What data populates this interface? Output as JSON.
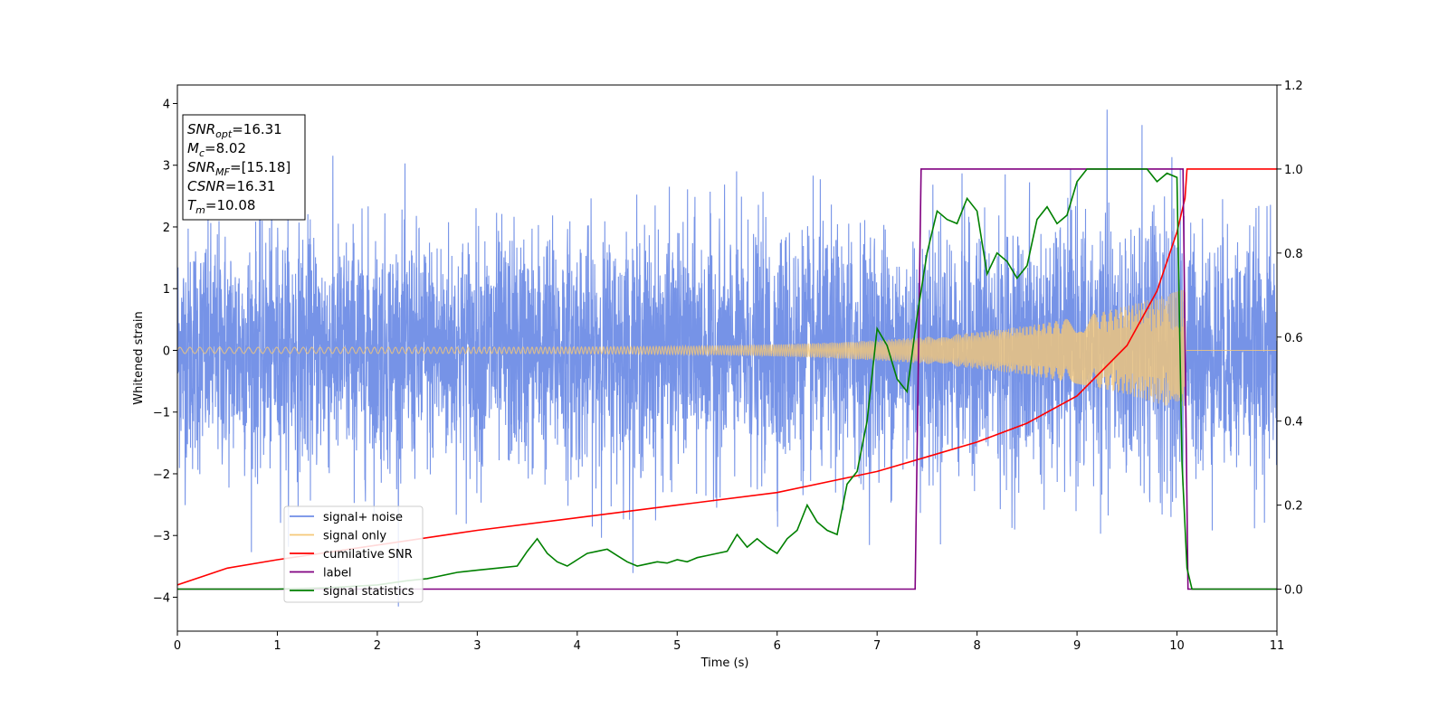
{
  "chart_data": {
    "type": "line",
    "xlabel": "Time (s)",
    "ylabel": "Whitened strain",
    "xlim": [
      0,
      11
    ],
    "ylim_left": [
      -4.55,
      4.3
    ],
    "ylim_right": [
      -0.1,
      1.2
    ],
    "x_ticks": [
      "0",
      "1",
      "2",
      "3",
      "4",
      "5",
      "6",
      "7",
      "8",
      "9",
      "10",
      "11"
    ],
    "y_ticks_left": [
      "−4",
      "−3",
      "−2",
      "−1",
      "0",
      "1",
      "2",
      "3",
      "4"
    ],
    "y_ticks_right": [
      "0.0",
      "0.2",
      "0.4",
      "0.6",
      "0.8",
      "1.0",
      "1.2"
    ],
    "legend_position": "lower-left",
    "legend": [
      {
        "label": "signal+ noise",
        "color": "#6f8de6"
      },
      {
        "label": "signal only",
        "color": "#f5c878"
      },
      {
        "label": "cumilative SNR",
        "color": "#ff0000"
      },
      {
        "label": "label",
        "color": "#800080"
      },
      {
        "label": "signal statistics",
        "color": "#008000"
      }
    ],
    "info_box": [
      {
        "name": "SNR",
        "sub": "opt",
        "value": "=16.31"
      },
      {
        "name": "M",
        "sub": "c",
        "value": "=8.02"
      },
      {
        "name": "SNR",
        "sub": "MF",
        "value": "=[15.18]"
      },
      {
        "name": "CSNR",
        "sub": "",
        "value": "=16.31"
      },
      {
        "name": "T",
        "sub": "m",
        "value": "=10.08"
      }
    ],
    "noise": {
      "std": 0.95,
      "peak_min": -4.15,
      "peak_max": 3.9
    },
    "signal_only": {
      "t_start": 0.0,
      "t_merge": 10.08,
      "amp_start": 0.05,
      "amp_end": 1.0
    },
    "cumulative_snr": {
      "x": [
        0.0,
        0.5,
        1.0,
        2.0,
        3.0,
        4.0,
        5.0,
        6.0,
        7.0,
        7.5,
        8.0,
        8.5,
        9.0,
        9.5,
        9.8,
        10.0,
        10.08,
        10.1,
        11.0
      ],
      "y": [
        0.01,
        0.05,
        0.07,
        0.105,
        0.14,
        0.17,
        0.2,
        0.23,
        0.28,
        0.315,
        0.35,
        0.395,
        0.46,
        0.58,
        0.71,
        0.85,
        0.93,
        1.0,
        1.0
      ]
    },
    "label": {
      "x": [
        0,
        7.38,
        7.44,
        10.06,
        10.11,
        11
      ],
      "y": [
        0,
        0,
        1,
        1,
        0,
        0
      ]
    },
    "signal_statistics": {
      "x": [
        0.0,
        0.5,
        1.0,
        1.5,
        2.0,
        2.3,
        2.5,
        2.6,
        2.8,
        3.0,
        3.2,
        3.4,
        3.5,
        3.6,
        3.7,
        3.8,
        3.9,
        4.0,
        4.1,
        4.2,
        4.3,
        4.4,
        4.5,
        4.6,
        4.7,
        4.8,
        4.9,
        5.0,
        5.1,
        5.2,
        5.3,
        5.4,
        5.5,
        5.6,
        5.7,
        5.8,
        5.9,
        6.0,
        6.1,
        6.2,
        6.3,
        6.4,
        6.5,
        6.6,
        6.7,
        6.8,
        6.9,
        7.0,
        7.1,
        7.2,
        7.3,
        7.4,
        7.5,
        7.6,
        7.7,
        7.8,
        7.9,
        8.0,
        8.1,
        8.2,
        8.3,
        8.4,
        8.5,
        8.6,
        8.7,
        8.8,
        8.9,
        9.0,
        9.1,
        9.2,
        9.3,
        9.4,
        9.5,
        9.6,
        9.7,
        9.8,
        9.9,
        10.0,
        10.05,
        10.1,
        10.15,
        10.5,
        11.0
      ],
      "y": [
        0.0,
        0.0,
        0.0,
        0.003,
        0.01,
        0.02,
        0.025,
        0.03,
        0.04,
        0.045,
        0.05,
        0.055,
        0.09,
        0.12,
        0.085,
        0.065,
        0.055,
        0.07,
        0.085,
        0.09,
        0.095,
        0.08,
        0.065,
        0.055,
        0.06,
        0.065,
        0.062,
        0.07,
        0.065,
        0.075,
        0.08,
        0.085,
        0.09,
        0.13,
        0.1,
        0.12,
        0.1,
        0.085,
        0.12,
        0.14,
        0.2,
        0.16,
        0.14,
        0.13,
        0.25,
        0.28,
        0.4,
        0.62,
        0.58,
        0.5,
        0.47,
        0.65,
        0.8,
        0.9,
        0.88,
        0.87,
        0.93,
        0.9,
        0.75,
        0.8,
        0.78,
        0.74,
        0.77,
        0.88,
        0.91,
        0.87,
        0.89,
        0.97,
        1.0,
        1.0,
        1.0,
        1.0,
        1.0,
        1.0,
        1.0,
        0.97,
        0.99,
        0.98,
        0.3,
        0.05,
        0.0,
        0.0,
        0.0
      ]
    }
  }
}
